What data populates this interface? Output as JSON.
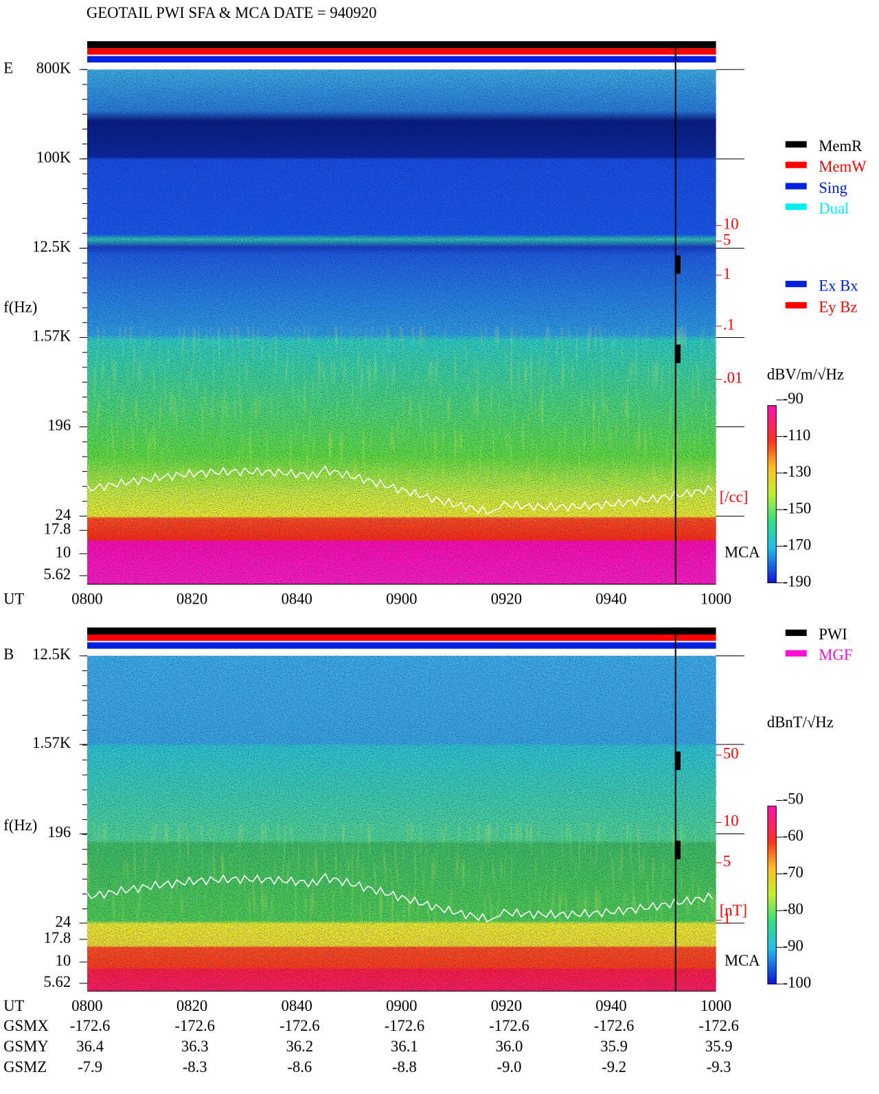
{
  "title": "GEOTAIL  PWI SFA & MCA   DATE = 940920",
  "panels": [
    {
      "label": "E",
      "ylabel": "f(Hz)",
      "freq_ticks": [
        "800K",
        "100K",
        "12.5K",
        "1.57K",
        "196",
        "24",
        "17.8",
        "10",
        "5.62"
      ],
      "right_ticks": [
        "10",
        "5",
        "1",
        ".1",
        ".01"
      ],
      "right_unit": "[/cc]",
      "mca": "MCA",
      "colorbar_unit": "dBV/m/√Hz",
      "colorbar_ticks": [
        "-90",
        "-110",
        "-130",
        "-150",
        "-170",
        "-190"
      ]
    },
    {
      "label": "B",
      "ylabel": "f(Hz)",
      "freq_ticks": [
        "12.5K",
        "1.57K",
        "196",
        "24",
        "17.8",
        "10",
        "5.62"
      ],
      "right_ticks": [
        "50",
        "10",
        "5",
        "1"
      ],
      "right_unit": "[nT]",
      "mca": "MCA",
      "colorbar_unit": "dBnT/√Hz",
      "colorbar_ticks": [
        "-50",
        "-60",
        "-70",
        "-80",
        "-90",
        "-100"
      ]
    }
  ],
  "legend_mode": [
    "MemR",
    "MemW",
    "Sing",
    "Dual"
  ],
  "legend_component": [
    "Ex Bx",
    "Ey Bz"
  ],
  "legend_source": [
    "PWI",
    "MGF"
  ],
  "time_axis": {
    "label": "UT",
    "ticks": [
      "0800",
      "0820",
      "0840",
      "0900",
      "0920",
      "0940",
      "1000"
    ]
  },
  "orbit": [
    {
      "label": "GSMX",
      "values": [
        "-172.6",
        "-172.6",
        "-172.6",
        "-172.6",
        "-172.6",
        "-172.6",
        "-172.6"
      ]
    },
    {
      "label": "GSMY",
      "values": [
        "36.4",
        "36.3",
        "36.2",
        "36.1",
        "36.0",
        "35.9",
        "35.9"
      ]
    },
    {
      "label": "GSMZ",
      "values": [
        "-7.9",
        "-8.3",
        "-8.6",
        "-8.8",
        "-9.0",
        "-9.2",
        "-9.3"
      ]
    }
  ]
}
